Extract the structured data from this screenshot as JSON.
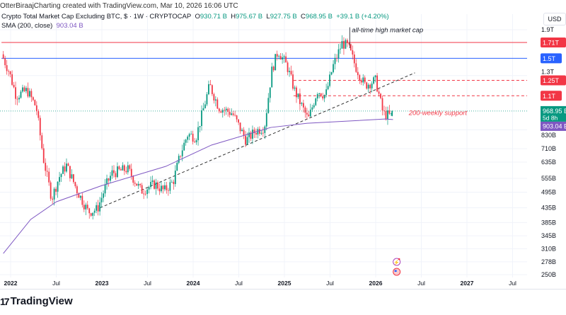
{
  "credit": "OtterBiraajCharting created with TradingView.com, Mar 10, 2026 16:06 UTC",
  "legend": {
    "symbol": "Crypto Total Market Cap Excluding BTC, $ · 1W · CRYPTOCAP",
    "o_label": "O",
    "o": "930.71 B",
    "h_label": "H",
    "h": "975.67 B",
    "l_label": "L",
    "l": "927.75 B",
    "c_label": "C",
    "c": "968.95 B",
    "change": "+39.1 B (+4.20%)",
    "sma_label": "SMA (200, close)",
    "sma_value": "903.04 B"
  },
  "currency": "USD",
  "brand": "TradingView",
  "colors": {
    "up": "#089981",
    "down": "#f23645",
    "sma": "#7e57c2",
    "blue": "#2962ff",
    "red": "#f23645",
    "grid": "#f0f3fa"
  },
  "chart_data": {
    "type": "candlestick",
    "title": "Crypto Total Market Cap Excluding BTC, $ · 1W",
    "yscale": "log",
    "ylabel": "USD",
    "y_ticks": [
      {
        "label": "1.9T",
        "value": 1900
      },
      {
        "label": "1.3T",
        "value": 1300
      },
      {
        "label": "830B",
        "value": 830
      },
      {
        "label": "710B",
        "value": 710
      },
      {
        "label": "635B",
        "value": 635
      },
      {
        "label": "555B",
        "value": 555
      },
      {
        "label": "495B",
        "value": 495
      },
      {
        "label": "435B",
        "value": 435
      },
      {
        "label": "385B",
        "value": 385
      },
      {
        "label": "345B",
        "value": 345
      },
      {
        "label": "310B",
        "value": 310
      },
      {
        "label": "278B",
        "value": 278
      },
      {
        "label": "250B",
        "value": 250
      }
    ],
    "x_ticks": [
      {
        "label": "2022",
        "t": 2022.0,
        "bold": true
      },
      {
        "label": "Jul",
        "t": 2022.5
      },
      {
        "label": "2023",
        "t": 2023.0,
        "bold": true
      },
      {
        "label": "Jul",
        "t": 2023.5
      },
      {
        "label": "2024",
        "t": 2024.0,
        "bold": true
      },
      {
        "label": "Jul",
        "t": 2024.5
      },
      {
        "label": "2025",
        "t": 2025.0,
        "bold": true
      },
      {
        "label": "Jul",
        "t": 2025.5
      },
      {
        "label": "2026",
        "t": 2026.0,
        "bold": true
      },
      {
        "label": "Jul",
        "t": 2026.5
      },
      {
        "label": "2027",
        "t": 2027.0,
        "bold": true
      },
      {
        "label": "Jul",
        "t": 2027.5
      }
    ],
    "price_anchors_billions": [
      [
        2021.92,
        1550
      ],
      [
        2022.0,
        1350
      ],
      [
        2022.08,
        1100
      ],
      [
        2022.2,
        1150
      ],
      [
        2022.3,
        1000
      ],
      [
        2022.38,
        650
      ],
      [
        2022.47,
        470
      ],
      [
        2022.55,
        560
      ],
      [
        2022.63,
        620
      ],
      [
        2022.75,
        500
      ],
      [
        2022.87,
        420
      ],
      [
        2022.97,
        430
      ],
      [
        2023.06,
        520
      ],
      [
        2023.13,
        580
      ],
      [
        2023.3,
        600
      ],
      [
        2023.45,
        500
      ],
      [
        2023.6,
        530
      ],
      [
        2023.7,
        500
      ],
      [
        2023.8,
        540
      ],
      [
        2023.88,
        680
      ],
      [
        2023.96,
        800
      ],
      [
        2024.05,
        780
      ],
      [
        2024.2,
        1200
      ],
      [
        2024.3,
        1000
      ],
      [
        2024.45,
        950
      ],
      [
        2024.6,
        760
      ],
      [
        2024.7,
        820
      ],
      [
        2024.8,
        850
      ],
      [
        2024.88,
        1350
      ],
      [
        2024.95,
        1600
      ],
      [
        2025.05,
        1400
      ],
      [
        2025.13,
        1150
      ],
      [
        2025.28,
        900
      ],
      [
        2025.38,
        1150
      ],
      [
        2025.47,
        1100
      ],
      [
        2025.55,
        1400
      ],
      [
        2025.65,
        1700
      ],
      [
        2025.72,
        1650
      ],
      [
        2025.8,
        1400
      ],
      [
        2025.9,
        1200
      ],
      [
        2026.02,
        1250
      ],
      [
        2026.1,
        950
      ],
      [
        2026.18,
        930.71
      ]
    ],
    "last_candle": {
      "open": 930.71,
      "high": 975.67,
      "low": 927.75,
      "close": 968.95
    },
    "sma_200": [
      [
        2021.92,
        298
      ],
      [
        2022.22,
        395
      ],
      [
        2022.5,
        457
      ],
      [
        2023.0,
        523
      ],
      [
        2023.7,
        613
      ],
      [
        2024.2,
        731
      ],
      [
        2024.85,
        846
      ],
      [
        2025.25,
        876
      ],
      [
        2026.1,
        907
      ],
      [
        2026.19,
        903.04
      ]
    ],
    "levels": [
      {
        "label": "1.71T",
        "value": 1710,
        "color": "#f23645",
        "style": "solid",
        "from": 2021.9
      },
      {
        "label": "1.5T",
        "value": 1500,
        "color": "#2962ff",
        "style": "solid",
        "from": 2021.9
      },
      {
        "label": "1.25T",
        "value": 1250,
        "color": "#f23645",
        "style": "dashed",
        "from": 2025.1
      },
      {
        "label": "1.1T",
        "value": 1100,
        "color": "#f23645",
        "style": "dashed",
        "from": 2025.1
      }
    ],
    "trendline": {
      "from": [
        2022.98,
        435
      ],
      "to": [
        2026.43,
        1330
      ]
    },
    "price_labels": [
      {
        "label": "968.95 B",
        "sub": "5d 8h",
        "value": 968.95,
        "color": "#089981"
      },
      {
        "label": "903.04 B",
        "value": 903.04,
        "color": "#7e57c2"
      }
    ],
    "annotations": [
      {
        "text": "all-time high market cap",
        "t": 2025.7,
        "value": 1850,
        "color": "#131722"
      },
      {
        "text": "200-weekly support",
        "t": 2026.3,
        "value": 955,
        "color": "#f23645"
      }
    ]
  }
}
